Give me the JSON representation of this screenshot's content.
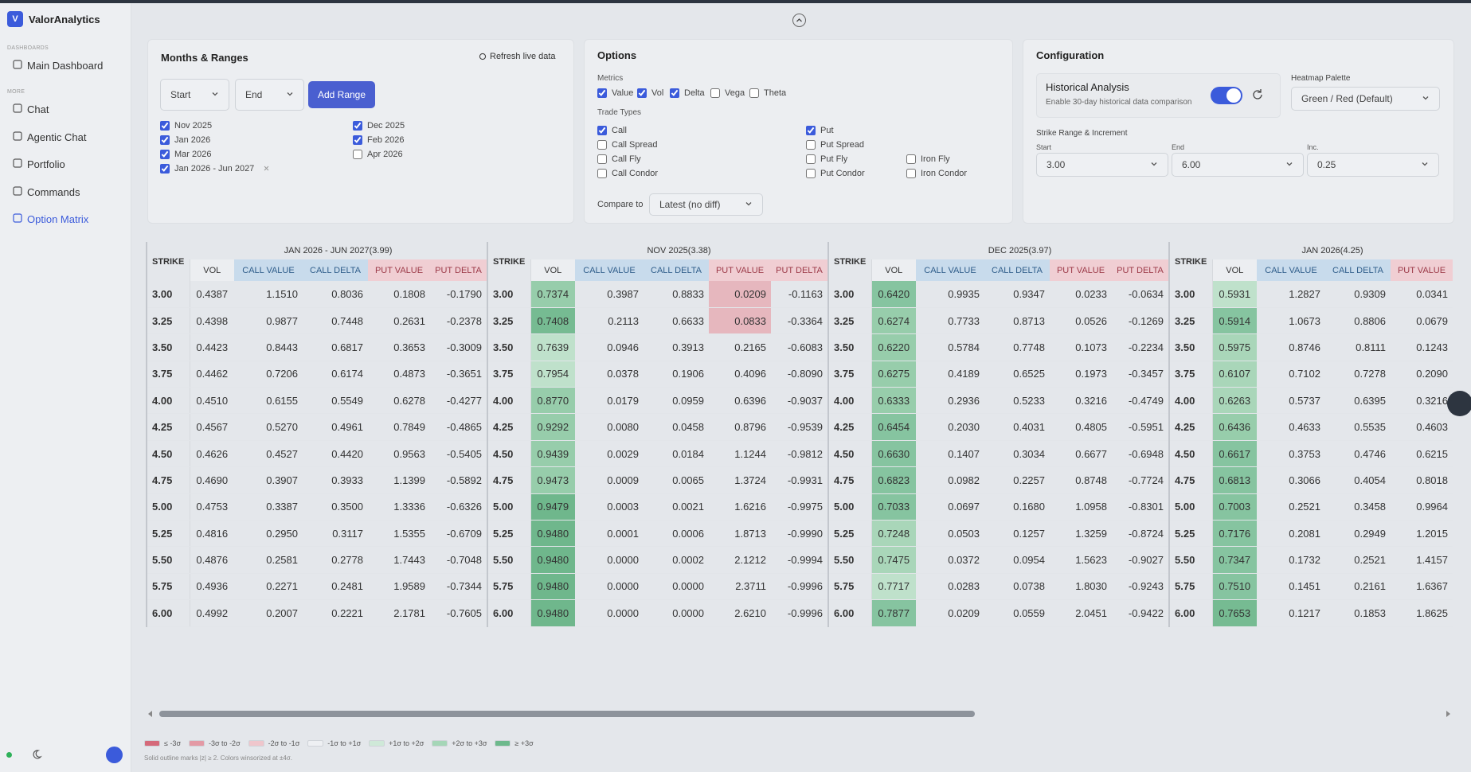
{
  "sidebar": {
    "logo": "V",
    "brand": "ValorAnalytics",
    "sections": [
      {
        "label": "DASHBOARDS",
        "items": [
          {
            "label": "Main Dashboard",
            "active": false
          }
        ]
      },
      {
        "label": "MORE",
        "items": [
          {
            "label": "Chat",
            "active": false
          },
          {
            "label": "Agentic Chat",
            "active": false
          },
          {
            "label": "Portfolio",
            "active": false
          },
          {
            "label": "Commands",
            "active": false
          },
          {
            "label": "Option Matrix",
            "active": true
          }
        ]
      }
    ]
  },
  "months_ranges": {
    "title": "Months & Ranges",
    "refresh": "Refresh live data",
    "start": "Start",
    "end": "End",
    "add": "Add Range",
    "checkboxes": [
      [
        {
          "label": "Nov 2025",
          "checked": true
        },
        {
          "label": "Jan 2026",
          "checked": true
        },
        {
          "label": "Mar 2026",
          "checked": true
        },
        {
          "label": "Jan 2026 - Jun 2027",
          "checked": true,
          "removable": true
        }
      ],
      [
        {
          "label": "Dec 2025",
          "checked": true
        },
        {
          "label": "Feb 2026",
          "checked": true
        },
        {
          "label": "Apr 2026",
          "checked": false
        }
      ]
    ]
  },
  "options": {
    "title": "Options",
    "metrics_label": "Metrics",
    "metrics": [
      {
        "label": "Value",
        "checked": true
      },
      {
        "label": "Vol",
        "checked": true
      },
      {
        "label": "Delta",
        "checked": true
      },
      {
        "label": "Vega",
        "checked": false
      },
      {
        "label": "Theta",
        "checked": false
      }
    ],
    "trade_types_label": "Trade Types",
    "trade_types": [
      [
        {
          "label": "Call",
          "checked": true
        },
        {
          "label": "Call Spread",
          "checked": false
        },
        {
          "label": "Call Fly",
          "checked": false
        },
        {
          "label": "Call Condor",
          "checked": false
        }
      ],
      [
        {
          "label": "Put",
          "checked": true
        },
        {
          "label": "Put Spread",
          "checked": false
        },
        {
          "label": "Put Fly",
          "checked": false
        },
        {
          "label": "Put Condor",
          "checked": false
        }
      ],
      [
        {
          "label": "Iron Fly",
          "checked": false
        },
        {
          "label": "Iron Condor",
          "checked": false
        }
      ]
    ],
    "compare_label": "Compare to",
    "compare_value": "Latest (no diff)"
  },
  "configuration": {
    "title": "Configuration",
    "historical_title": "Historical Analysis",
    "historical_desc": "Enable 30-day historical data comparison",
    "historical_on": true,
    "palette_label": "Heatmap Palette",
    "palette_value": "Green / Red (Default)",
    "strike_label": "Strike Range & Increment",
    "fields": [
      {
        "label": "Start",
        "value": "3.00"
      },
      {
        "label": "End",
        "value": "6.00"
      },
      {
        "label": "Inc.",
        "value": "0.25"
      }
    ]
  },
  "table": {
    "strike_header": "STRIKE",
    "strikes": [
      "3.00",
      "3.25",
      "3.50",
      "3.75",
      "4.00",
      "4.25",
      "4.50",
      "4.75",
      "5.00",
      "5.25",
      "5.50",
      "5.75",
      "6.00"
    ],
    "sections": [
      {
        "title": "JAN 2026 - JUN 2027(3.99)",
        "columns": [
          {
            "header": "VOL",
            "header_color": "#eceef1",
            "header_text": "#333",
            "values": [
              "0.4387",
              "0.4398",
              "0.4423",
              "0.4462",
              "0.4510",
              "0.4567",
              "0.4626",
              "0.4690",
              "0.4753",
              "0.4816",
              "0.4876",
              "0.4936",
              "0.4992"
            ]
          },
          {
            "header": "CALL VALUE",
            "header_color": "#c8dbec",
            "header_text": "#2f5d8a",
            "values": [
              "1.1510",
              "0.9877",
              "0.8443",
              "0.7206",
              "0.6155",
              "0.5270",
              "0.4527",
              "0.3907",
              "0.3387",
              "0.2950",
              "0.2581",
              "0.2271",
              "0.2007"
            ]
          },
          {
            "header": "CALL DELTA",
            "header_color": "#c8dbec",
            "header_text": "#2f5d8a",
            "values": [
              "0.8036",
              "0.7448",
              "0.6817",
              "0.6174",
              "0.5549",
              "0.4961",
              "0.4420",
              "0.3933",
              "0.3500",
              "0.3117",
              "0.2778",
              "0.2481",
              "0.2221"
            ]
          },
          {
            "header": "PUT VALUE",
            "header_color": "#f0ced3",
            "header_text": "#9c3a48",
            "values": [
              "0.1808",
              "0.2631",
              "0.3653",
              "0.4873",
              "0.6278",
              "0.7849",
              "0.9563",
              "1.1399",
              "1.3336",
              "1.5355",
              "1.7443",
              "1.9589",
              "2.1781"
            ]
          },
          {
            "header": "PUT DELTA",
            "header_color": "#f0ced3",
            "header_text": "#9c3a48",
            "values": [
              "-0.1790",
              "-0.2378",
              "-0.3009",
              "-0.3651",
              "-0.4277",
              "-0.4865",
              "-0.5405",
              "-0.5892",
              "-0.6326",
              "-0.6709",
              "-0.7048",
              "-0.7344",
              "-0.7605"
            ]
          }
        ]
      },
      {
        "title": "NOV 2025(3.38)",
        "columns": [
          {
            "header": "VOL",
            "header_color": "#eceef1",
            "header_text": "#333",
            "values": [
              "0.7374",
              "0.7408",
              "0.7639",
              "0.7954",
              "0.8770",
              "0.9292",
              "0.9439",
              "0.9473",
              "0.9479",
              "0.9480",
              "0.9480",
              "0.9480",
              "0.9480"
            ],
            "cell_colors": [
              "#97cdab",
              "#76bb92",
              "#bfe1cb",
              "#bfe1cb",
              "#97cdab",
              "#97cdab",
              "#97cdab",
              "#97cdab",
              "#6fb78c",
              "#6fb78c",
              "#6fb78c",
              "#6fb78c",
              "#6fb78c"
            ]
          },
          {
            "header": "CALL VALUE",
            "header_color": "#c8dbec",
            "header_text": "#2f5d8a",
            "values": [
              "0.3987",
              "0.2113",
              "0.0946",
              "0.0378",
              "0.0179",
              "0.0080",
              "0.0029",
              "0.0009",
              "0.0003",
              "0.0001",
              "0.0000",
              "0.0000",
              "0.0000"
            ]
          },
          {
            "header": "CALL DELTA",
            "header_color": "#c8dbec",
            "header_text": "#2f5d8a",
            "values": [
              "0.8833",
              "0.6633",
              "0.3913",
              "0.1906",
              "0.0959",
              "0.0458",
              "0.0184",
              "0.0065",
              "0.0021",
              "0.0006",
              "0.0002",
              "0.0000",
              "0.0000"
            ]
          },
          {
            "header": "PUT VALUE",
            "header_color": "#f0ced3",
            "header_text": "#9c3a48",
            "values": [
              "0.0209",
              "0.0833",
              "0.2165",
              "0.4096",
              "0.6396",
              "0.8796",
              "1.1244",
              "1.3724",
              "1.6216",
              "1.8713",
              "2.1212",
              "2.3711",
              "2.6210"
            ],
            "cell_colors": [
              "#e6b7be",
              "#e6b7be",
              null,
              null,
              null,
              null,
              null,
              null,
              null,
              null,
              null,
              null,
              null
            ]
          },
          {
            "header": "PUT DELTA",
            "header_color": "#f0ced3",
            "header_text": "#9c3a48",
            "values": [
              "-0.1163",
              "-0.3364",
              "-0.6083",
              "-0.8090",
              "-0.9037",
              "-0.9539",
              "-0.9812",
              "-0.9931",
              "-0.9975",
              "-0.9990",
              "-0.9994",
              "-0.9996",
              "-0.9996"
            ]
          }
        ]
      },
      {
        "title": "DEC 2025(3.97)",
        "columns": [
          {
            "header": "VOL",
            "header_color": "#eceef1",
            "header_text": "#333",
            "values": [
              "0.6420",
              "0.6274",
              "0.6220",
              "0.6275",
              "0.6333",
              "0.6454",
              "0.6630",
              "0.6823",
              "0.7033",
              "0.7248",
              "0.7475",
              "0.7717",
              "0.7877"
            ],
            "cell_colors": [
              "#86c4a0",
              "#97cdab",
              "#97cdab",
              "#97cdab",
              "#97cdab",
              "#86c4a0",
              "#86c4a0",
              "#86c4a0",
              "#86c4a0",
              "#a9d6b9",
              "#a9d6b9",
              "#bfe1cb",
              "#86c4a0"
            ]
          },
          {
            "header": "CALL VALUE",
            "header_color": "#c8dbec",
            "header_text": "#2f5d8a",
            "values": [
              "0.9935",
              "0.7733",
              "0.5784",
              "0.4189",
              "0.2936",
              "0.2030",
              "0.1407",
              "0.0982",
              "0.0697",
              "0.0503",
              "0.0372",
              "0.0283",
              "0.0209"
            ]
          },
          {
            "header": "CALL DELTA",
            "header_color": "#c8dbec",
            "header_text": "#2f5d8a",
            "values": [
              "0.9347",
              "0.8713",
              "0.7748",
              "0.6525",
              "0.5233",
              "0.4031",
              "0.3034",
              "0.2257",
              "0.1680",
              "0.1257",
              "0.0954",
              "0.0738",
              "0.0559"
            ]
          },
          {
            "header": "PUT VALUE",
            "header_color": "#f0ced3",
            "header_text": "#9c3a48",
            "values": [
              "0.0233",
              "0.0526",
              "0.1073",
              "0.1973",
              "0.3216",
              "0.4805",
              "0.6677",
              "0.8748",
              "1.0958",
              "1.3259",
              "1.5623",
              "1.8030",
              "2.0451"
            ]
          },
          {
            "header": "PUT DELTA",
            "header_color": "#f0ced3",
            "header_text": "#9c3a48",
            "values": [
              "-0.0634",
              "-0.1269",
              "-0.2234",
              "-0.3457",
              "-0.4749",
              "-0.5951",
              "-0.6948",
              "-0.7724",
              "-0.8301",
              "-0.8724",
              "-0.9027",
              "-0.9243",
              "-0.9422"
            ]
          }
        ]
      },
      {
        "title": "JAN 2026(4.25)",
        "columns": [
          {
            "header": "VOL",
            "header_color": "#eceef1",
            "header_text": "#333",
            "values": [
              "0.5931",
              "0.5914",
              "0.5975",
              "0.6107",
              "0.6263",
              "0.6436",
              "0.6617",
              "0.6813",
              "0.7003",
              "0.7176",
              "0.7347",
              "0.7510",
              "0.7653"
            ],
            "cell_colors": [
              "#bfe1cb",
              "#86c4a0",
              "#a9d6b9",
              "#a9d6b9",
              "#a9d6b9",
              "#97cdab",
              "#86c4a0",
              "#86c4a0",
              "#86c4a0",
              "#86c4a0",
              "#86c4a0",
              "#86c4a0",
              "#76bb92"
            ]
          },
          {
            "header": "CALL VALUE",
            "header_color": "#c8dbec",
            "header_text": "#2f5d8a",
            "values": [
              "1.2827",
              "1.0673",
              "0.8746",
              "0.7102",
              "0.5737",
              "0.4633",
              "0.3753",
              "0.3066",
              "0.2521",
              "0.2081",
              "0.1732",
              "0.1451",
              "0.1217"
            ]
          },
          {
            "header": "CALL DELTA",
            "header_color": "#c8dbec",
            "header_text": "#2f5d8a",
            "values": [
              "0.9309",
              "0.8806",
              "0.8111",
              "0.7278",
              "0.6395",
              "0.5535",
              "0.4746",
              "0.4054",
              "0.3458",
              "0.2949",
              "0.2521",
              "0.2161",
              "0.1853"
            ]
          },
          {
            "header": "PUT VALUE",
            "header_color": "#f0ced3",
            "header_text": "#9c3a48",
            "values": [
              "0.0341",
              "0.0679",
              "0.1243",
              "0.2090",
              "0.3216",
              "0.4603",
              "0.6215",
              "0.8018",
              "0.9964",
              "1.2015",
              "1.4157",
              "1.6367",
              "1.8625"
            ]
          }
        ]
      }
    ]
  },
  "legend": {
    "items": [
      {
        "label": "≤ -3σ",
        "color": "#d56a7a"
      },
      {
        "label": "-3σ to -2σ",
        "color": "#e39aa5"
      },
      {
        "label": "-2σ to -1σ",
        "color": "#efc6cc"
      },
      {
        "label": "-1σ to +1σ",
        "color": "#eef0f3"
      },
      {
        "label": "+1σ to +2σ",
        "color": "#cfe9d8"
      },
      {
        "label": "+2σ to +3σ",
        "color": "#a5d6b7"
      },
      {
        "label": "≥ +3σ",
        "color": "#6db98c"
      }
    ],
    "note": "Solid outline marks |z| ≥ 2. Colors winsorized at ±4σ."
  }
}
